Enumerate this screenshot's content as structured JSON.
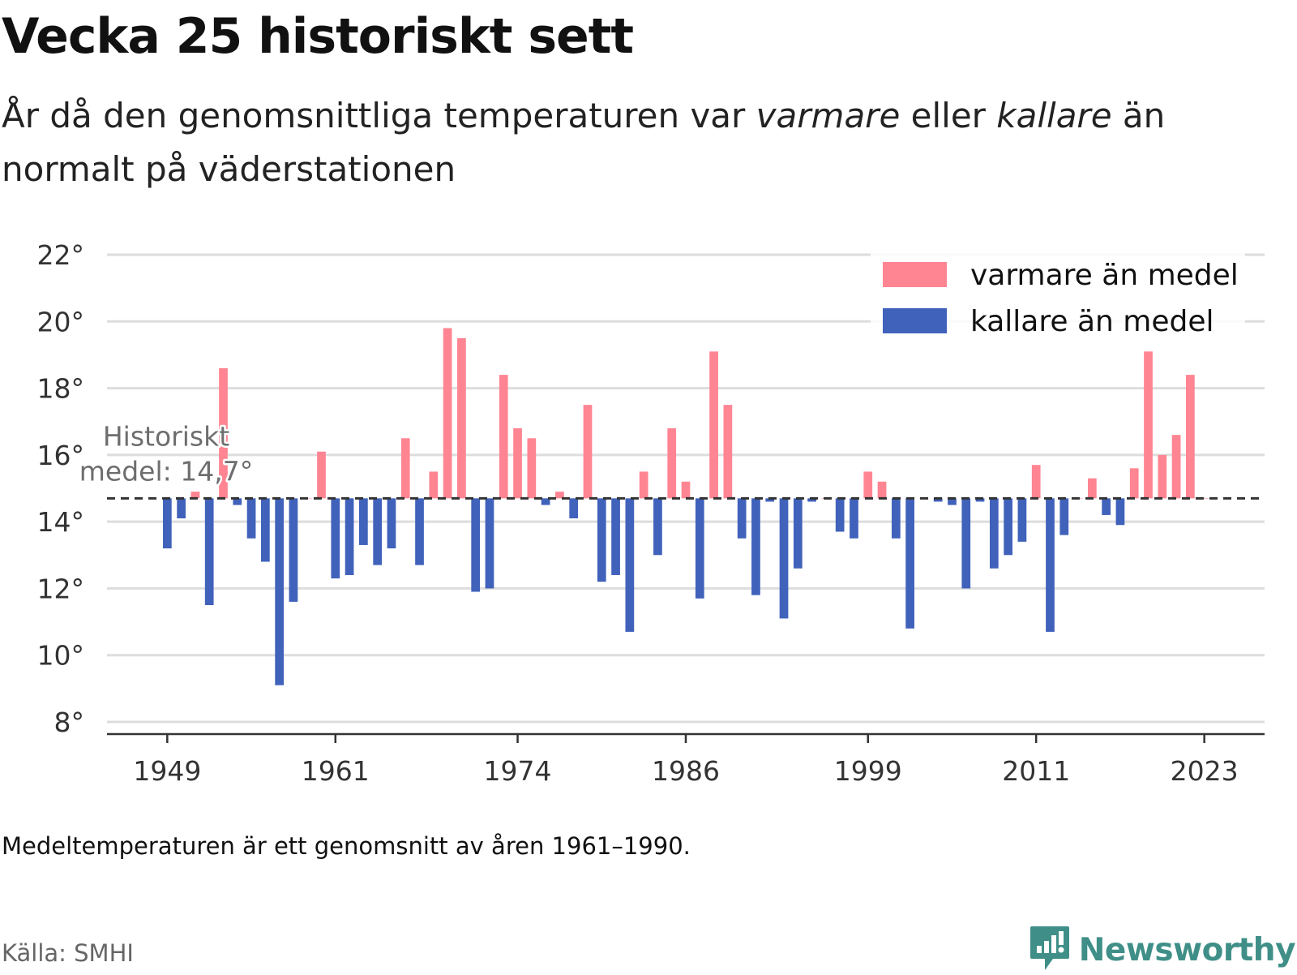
{
  "title": "Vecka 25 historiskt sett",
  "subtitle": {
    "part1": "År då den genomsnittliga temperaturen var ",
    "warm_word": "varmare",
    "part2": " eller ",
    "cold_word": "kallare",
    "part3": " än normalt på väderstationen"
  },
  "note": "Medeltemperaturen är ett genomsnitt av åren 1961–1990.",
  "source": "Källa: SMHI",
  "brand": {
    "name": "Newsworthy",
    "icon": "newsworthy-logo-icon"
  },
  "colors": {
    "warm": "#ff8593",
    "cold": "#4062bb",
    "grid": "#dddddd",
    "axis": "#333333"
  },
  "chart_data": {
    "type": "bar",
    "baseline": 14.7,
    "baseline_label_line1": "Historiskt",
    "baseline_label_line2": "medel: 14,7°",
    "ylim": [
      8,
      22
    ],
    "yticks": [
      8,
      10,
      12,
      14,
      16,
      18,
      20,
      22
    ],
    "ytick_labels": [
      "8°",
      "10°",
      "12°",
      "14°",
      "16°",
      "18°",
      "20°",
      "22°"
    ],
    "xticks": [
      1949,
      1961,
      1974,
      1986,
      1999,
      2011,
      2023
    ],
    "xtick_labels": [
      "1949",
      "1961",
      "1974",
      "1986",
      "1999",
      "2011",
      "2023"
    ],
    "xlim": [
      1944.7,
      2027.3
    ],
    "grid": true,
    "legend_position": "top-right",
    "legend": [
      {
        "label": "varmare än medel",
        "series": "warm"
      },
      {
        "label": "kallare än medel",
        "series": "cold"
      }
    ],
    "x": [
      1949,
      1950,
      1951,
      1952,
      1953,
      1954,
      1955,
      1956,
      1957,
      1958,
      1959,
      1960,
      1961,
      1962,
      1963,
      1964,
      1965,
      1966,
      1967,
      1968,
      1969,
      1970,
      1971,
      1972,
      1973,
      1974,
      1975,
      1976,
      1977,
      1978,
      1979,
      1980,
      1981,
      1982,
      1983,
      1984,
      1985,
      1986,
      1987,
      1988,
      1989,
      1990,
      1991,
      1992,
      1993,
      1994,
      1995,
      1996,
      1997,
      1998,
      1999,
      2000,
      2001,
      2002,
      2003,
      2004,
      2005,
      2006,
      2007,
      2008,
      2009,
      2010,
      2011,
      2012,
      2013,
      2014,
      2015,
      2016,
      2017,
      2018,
      2019,
      2020,
      2021,
      2022,
      2023
    ],
    "values": [
      13.2,
      14.1,
      14.9,
      11.5,
      18.6,
      14.5,
      13.5,
      12.8,
      9.1,
      11.6,
      14.7,
      16.1,
      12.3,
      12.4,
      13.3,
      12.7,
      13.2,
      16.5,
      12.7,
      15.5,
      19.8,
      19.5,
      11.9,
      12.0,
      18.4,
      16.8,
      16.5,
      14.5,
      14.9,
      14.1,
      17.5,
      12.2,
      12.4,
      10.7,
      15.5,
      13.0,
      16.8,
      15.2,
      11.7,
      19.1,
      17.5,
      13.5,
      11.8,
      14.6,
      11.1,
      12.6,
      14.6,
      14.7,
      13.7,
      13.5,
      15.5,
      15.2,
      13.5,
      10.8,
      14.7,
      14.6,
      14.5,
      12.0,
      14.6,
      12.6,
      13.0,
      13.4,
      15.7,
      10.7,
      13.6,
      14.7,
      15.3,
      14.2,
      13.9,
      15.6,
      19.1,
      16.0,
      16.6,
      18.4,
      14.7
    ]
  }
}
